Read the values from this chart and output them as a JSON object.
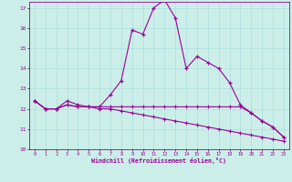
{
  "xlabel": "Windchill (Refroidissement éolien,°C)",
  "background_color": "#cceee8",
  "grid_color": "#aadddd",
  "line_color": "#990099",
  "xmin": 0,
  "xmax": 23,
  "ymin": 10,
  "ymax": 17,
  "hours": [
    0,
    1,
    2,
    3,
    4,
    5,
    6,
    7,
    8,
    9,
    10,
    11,
    12,
    13,
    14,
    15,
    16,
    17,
    18,
    19,
    20,
    21,
    22,
    23
  ],
  "series1": [
    12.4,
    12.0,
    12.0,
    12.4,
    12.2,
    12.1,
    12.1,
    12.7,
    13.4,
    15.9,
    15.7,
    17.0,
    17.4,
    16.5,
    14.0,
    14.6,
    14.3,
    14.0,
    13.3,
    12.2,
    11.8,
    11.4,
    11.1,
    10.6
  ],
  "series2": [
    12.4,
    12.0,
    12.0,
    12.2,
    12.1,
    12.1,
    12.1,
    12.1,
    12.1,
    12.1,
    12.1,
    12.1,
    12.1,
    12.1,
    12.1,
    12.1,
    12.1,
    12.1,
    12.1,
    12.1,
    11.8,
    11.4,
    11.1,
    10.6
  ],
  "series3": [
    12.4,
    12.0,
    12.0,
    12.2,
    12.1,
    12.1,
    12.0,
    12.0,
    11.9,
    11.8,
    11.7,
    11.6,
    11.5,
    11.4,
    11.3,
    11.2,
    11.1,
    11.0,
    10.9,
    10.8,
    10.7,
    10.6,
    10.5,
    10.4
  ]
}
